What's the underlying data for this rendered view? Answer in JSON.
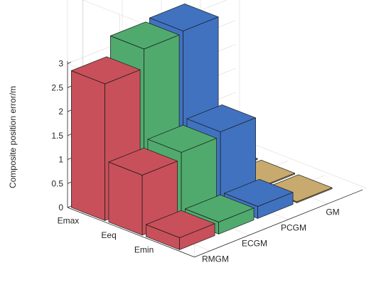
{
  "chart_data": {
    "type": "bar",
    "subtype": "3d-bar",
    "zlabel": "Composite position error/m",
    "zlim": [
      0,
      3
    ],
    "z_ticks": [
      "0",
      "0.5",
      "1",
      "1.5",
      "2",
      "2.5",
      "3"
    ],
    "x_categories": [
      "RMGM",
      "ECGM",
      "PCGM",
      "GM"
    ],
    "y_categories": [
      "Emax",
      "Eeq",
      "Emin"
    ],
    "grid": true,
    "series": [
      {
        "category": "RMGM",
        "color": "#C8505A",
        "values": [
          2.85,
          1.25,
          0.25
        ]
      },
      {
        "category": "ECGM",
        "color": "#50AA6E",
        "values": [
          3.25,
          1.4,
          0.25
        ]
      },
      {
        "category": "PCGM",
        "color": "#4072C0",
        "values": [
          3.3,
          1.5,
          0.25
        ]
      },
      {
        "category": "GM",
        "color": "#C8AA6E",
        "values": [
          0.02,
          0.02,
          0.02
        ]
      }
    ]
  }
}
